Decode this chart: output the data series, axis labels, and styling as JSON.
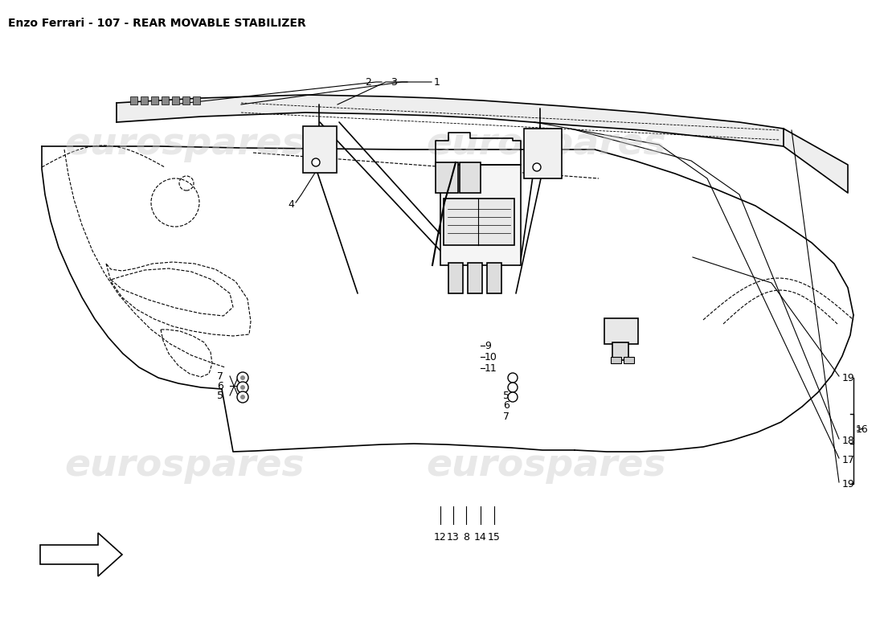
{
  "title": "Enzo Ferrari - 107 - REAR MOVABLE STABILIZER",
  "title_fontsize": 10,
  "title_color": "#000000",
  "background_color": "#ffffff",
  "line_color": "#000000",
  "watermark_text": "eurospares",
  "watermark_color": "#cccccc",
  "watermark_fontsize": 34
}
